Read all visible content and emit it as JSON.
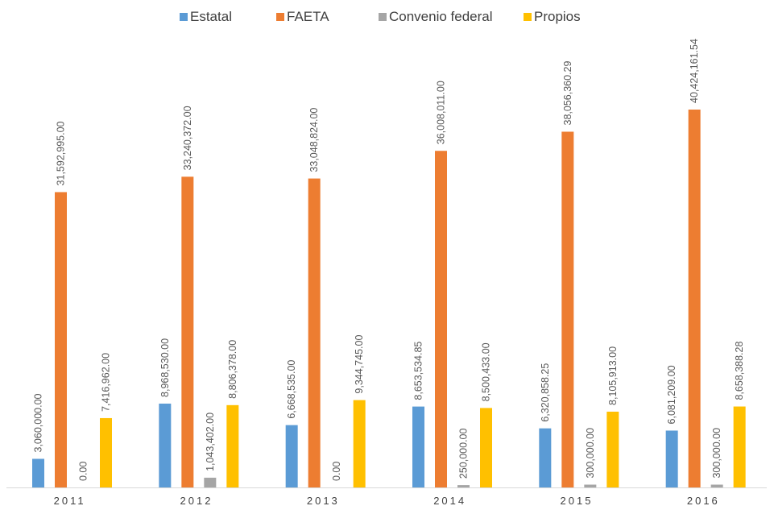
{
  "chart_data": {
    "type": "bar",
    "categories": [
      "2011",
      "2012",
      "2013",
      "2014",
      "2015",
      "2016"
    ],
    "series": [
      {
        "name": "Estatal",
        "color": "#5B9BD5",
        "values": [
          3060000.0,
          8968530.0,
          6668535.0,
          8653534.85,
          6320858.25,
          6081209.0
        ],
        "labels": [
          "3,060,000.00",
          "8,968,530.00",
          "6,668,535.00",
          "8,653,534.85",
          "6,320,858.25",
          "6,081,209.00"
        ]
      },
      {
        "name": "FAETA",
        "color": "#ED7D31",
        "values": [
          31592995.0,
          33240372.0,
          33048824.0,
          36008011.0,
          38056360.29,
          40424161.54
        ],
        "labels": [
          "31,592,995.00",
          "33,240,372.00",
          "33,048,824.00",
          "36,008,011.00",
          "38,056,360.29",
          "40,424,161.54"
        ]
      },
      {
        "name": "Convenio federal",
        "color": "#A5A5A5",
        "values": [
          0.0,
          1043402.0,
          0.0,
          250000.0,
          300000.0,
          300000.0
        ],
        "labels": [
          "0.00",
          "1,043,402.00",
          "0.00",
          "250,000.00",
          "300,000.00",
          "300,000.00"
        ]
      },
      {
        "name": "Propios",
        "color": "#FFC000",
        "values": [
          7416962.0,
          8806378.0,
          9344745.0,
          8500433.0,
          8105913.0,
          8658388.28
        ],
        "labels": [
          "7,416,962.00",
          "8,806,378.00",
          "9,344,745.00",
          "8,500,433.00",
          "8,105,913.00",
          "8,658,388.28"
        ]
      }
    ],
    "legend_position": "top",
    "grid": false,
    "title": "",
    "xlabel": "",
    "ylabel": ""
  }
}
